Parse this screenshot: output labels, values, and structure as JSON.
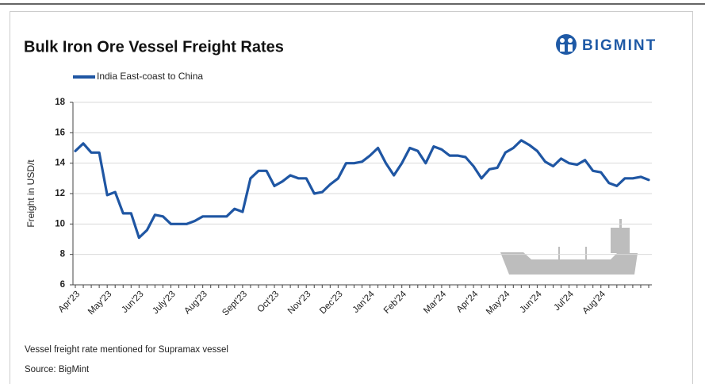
{
  "logo": "BIGMINT",
  "chart_data": {
    "type": "line",
    "title": "Bulk Iron Ore Vessel Freight Rates",
    "y_label": "Freight  in USD/t",
    "note": "Vessel freight rate mentioned for Supramax vessel",
    "source": "Source: BigMint",
    "categories": [
      "Apr'23",
      null,
      null,
      null,
      "May'23",
      null,
      null,
      null,
      "Jun'23",
      null,
      null,
      null,
      "July'23",
      null,
      null,
      null,
      "Aug'23",
      null,
      null,
      null,
      null,
      "Sept'23",
      null,
      null,
      null,
      "Oct'23",
      null,
      null,
      null,
      "Nov'23",
      null,
      null,
      null,
      "Dec'23",
      null,
      null,
      null,
      "Jan'24",
      null,
      null,
      null,
      "Feb'24",
      null,
      null,
      null,
      null,
      "Mar'24",
      null,
      null,
      null,
      "Apr'24",
      null,
      null,
      null,
      "May'24",
      null,
      null,
      null,
      "Jun'24",
      null,
      null,
      null,
      "Jul'24",
      null,
      null,
      null,
      "Aug'24",
      null,
      null,
      null,
      null,
      null,
      null
    ],
    "series": [
      {
        "name": "India East-coast to China",
        "color": "#1f56a3",
        "values": [
          14.8,
          15.3,
          14.7,
          14.7,
          11.9,
          12.1,
          10.7,
          10.7,
          9.1,
          9.6,
          10.6,
          10.5,
          10.0,
          10.0,
          10.0,
          10.2,
          10.5,
          10.5,
          10.5,
          10.5,
          11.0,
          10.8,
          13.0,
          13.5,
          13.5,
          12.5,
          12.8,
          13.2,
          13.0,
          13.0,
          12.0,
          12.1,
          12.6,
          13.0,
          14.0,
          14.0,
          14.1,
          14.5,
          15.0,
          14.0,
          13.2,
          14.0,
          15.0,
          14.8,
          14.0,
          15.1,
          14.9,
          14.5,
          14.5,
          14.4,
          13.8,
          13.0,
          13.6,
          13.7,
          14.7,
          15.0,
          15.5,
          15.2,
          14.8,
          14.1,
          13.8,
          14.3,
          14.0,
          13.9,
          14.2,
          13.5,
          13.4,
          12.7,
          12.5,
          13.0,
          13.0,
          13.1,
          12.9
        ]
      }
    ],
    "ylim": [
      6,
      18
    ],
    "yticks": [
      6,
      8,
      10,
      12,
      14,
      16,
      18
    ],
    "grid": true
  }
}
